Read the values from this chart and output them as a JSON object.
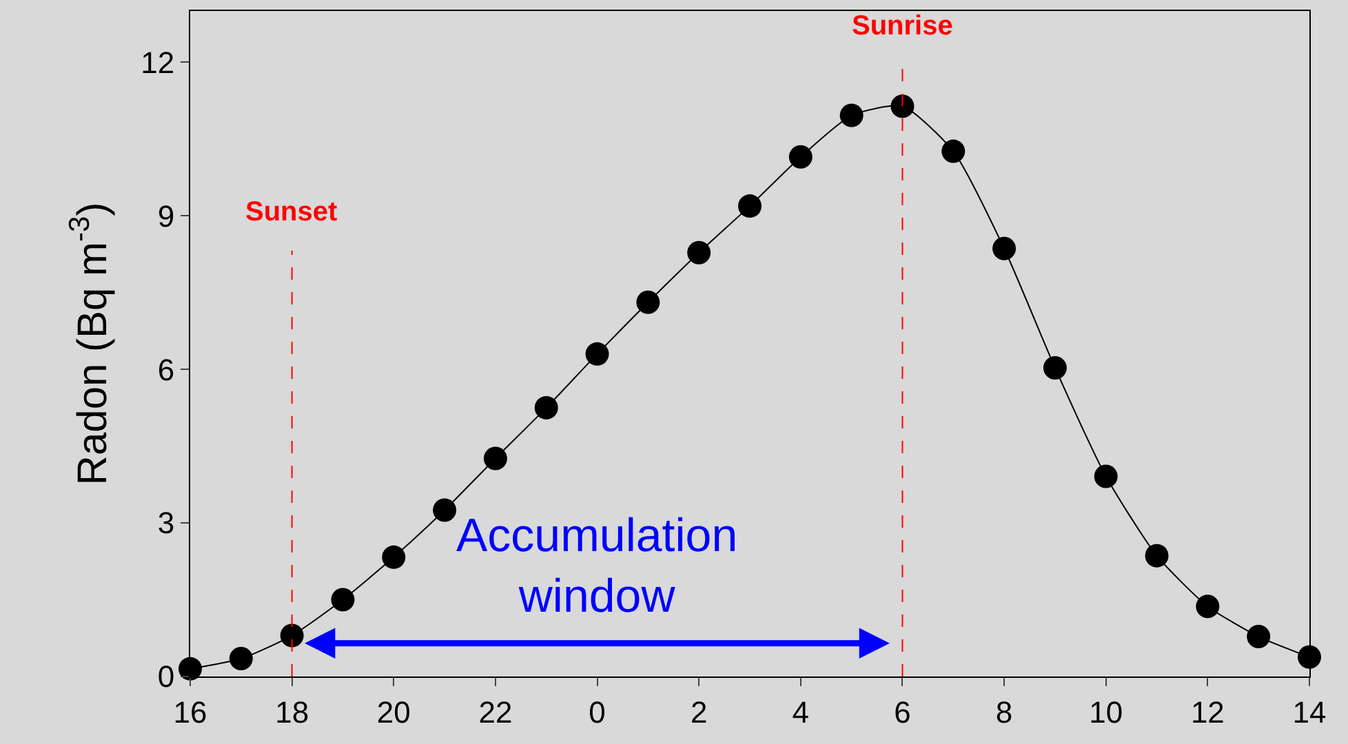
{
  "chart_data": {
    "type": "line",
    "ylabel": "Radon (Bq m$^{-3}$)",
    "categories": [
      "16",
      null,
      "18",
      null,
      "20",
      null,
      "22",
      null,
      "0",
      null,
      "2",
      null,
      "4",
      null,
      "6",
      null,
      "8",
      null,
      "10",
      null,
      "12",
      null,
      "14"
    ],
    "series": [
      {
        "color": "#000000",
        "values": [
          0.15,
          0.35,
          0.8,
          1.5,
          2.33,
          3.25,
          4.26,
          5.25,
          6.3,
          7.31,
          8.28,
          9.19,
          10.15,
          10.96,
          11.14,
          10.26,
          8.36,
          6.03,
          3.91,
          2.36,
          1.37,
          0.78,
          0.38
        ]
      }
    ],
    "ylim": [
      0,
      13
    ],
    "yticks": [
      0,
      3,
      6,
      9,
      12
    ],
    "marker": "circle",
    "line_style": "solid",
    "grid": false,
    "ref_lines": [
      {
        "axis": "x",
        "value": "18",
        "label": "Sunset",
        "color": "#ff0000",
        "line_style": "dashed"
      },
      {
        "axis": "x",
        "value": "6",
        "label": "Sunrise",
        "color": "#ff0000",
        "line_style": "dashed"
      }
    ],
    "annotations": [
      "Accumulation window"
    ]
  }
}
